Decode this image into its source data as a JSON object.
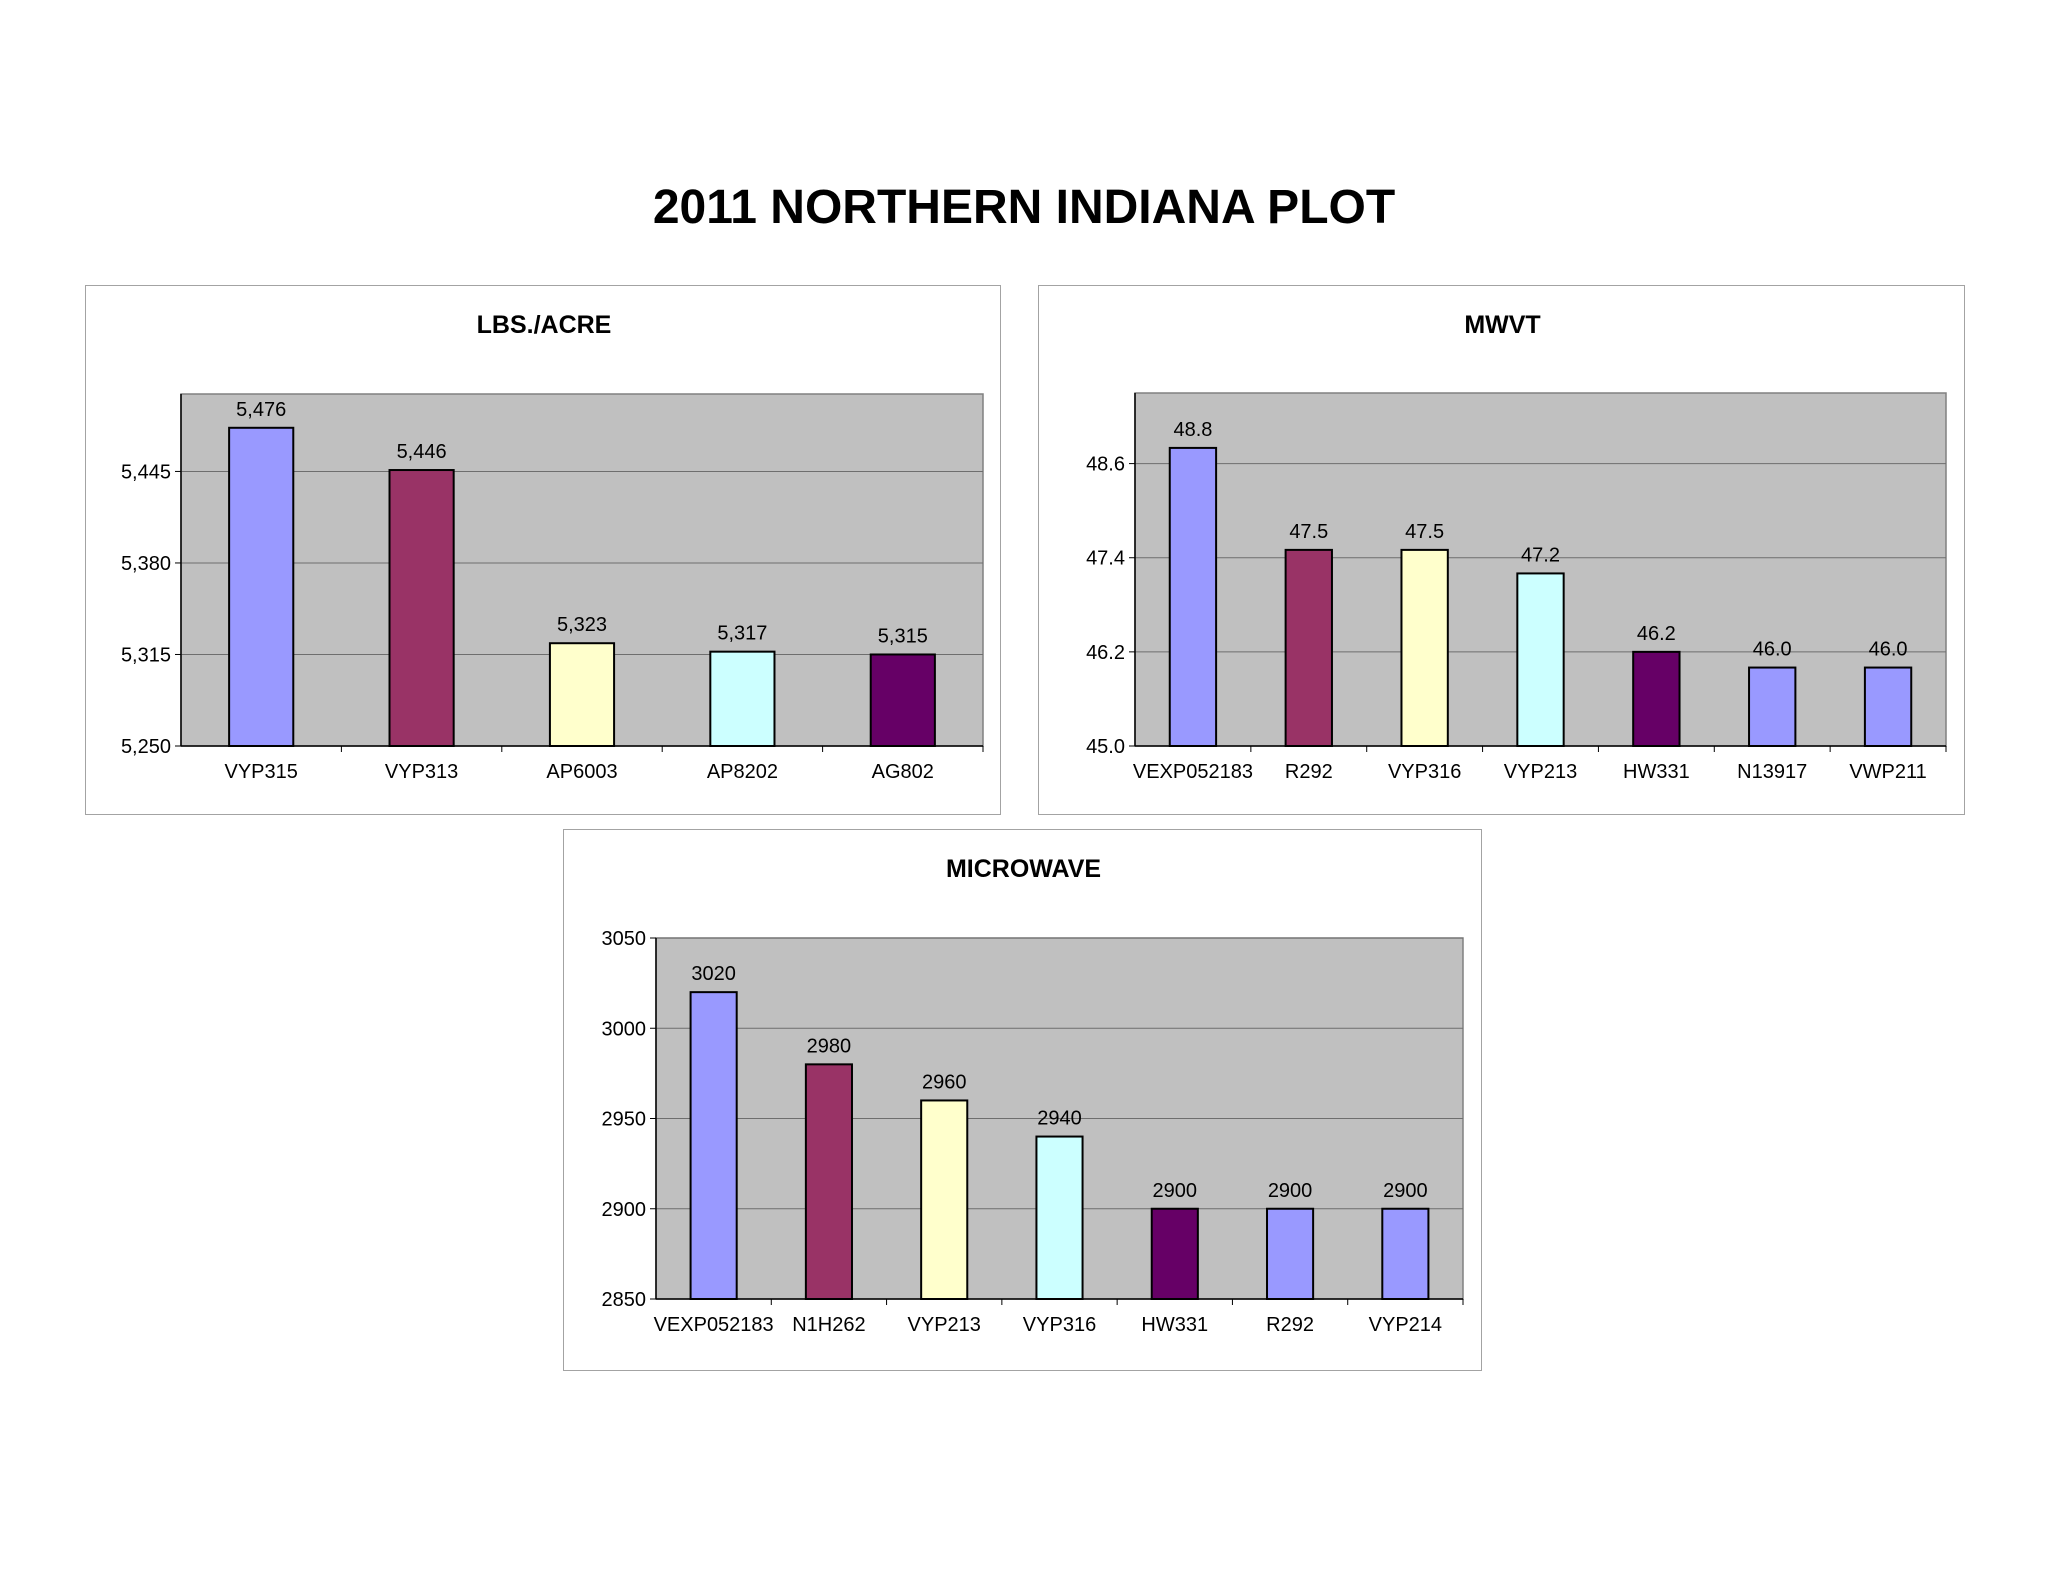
{
  "page": {
    "title": "2011 NORTHERN INDIANA PLOT"
  },
  "chart_data": [
    {
      "type": "bar",
      "title": "LBS./ACRE",
      "categories": [
        "VYP315",
        "VYP313",
        "AP6003",
        "AP8202",
        "AG802"
      ],
      "values": [
        5476,
        5446,
        5323,
        5317,
        5315
      ],
      "value_labels": [
        "5,476",
        "5,446",
        "5,323",
        "5,317",
        "5,315"
      ],
      "colors": [
        "#9999FF",
        "#993366",
        "#FFFFCC",
        "#CCFFFF",
        "#660066"
      ],
      "yticks": [
        5250,
        5315,
        5380,
        5445
      ],
      "ytick_labels": [
        "5,250",
        "5,315",
        "5,380",
        "5,445"
      ],
      "ylim": [
        5250,
        5500
      ],
      "grid": true,
      "legend": "none",
      "plot_bg": "#C0C0C0"
    },
    {
      "type": "bar",
      "title": "MWVT",
      "categories": [
        "VEXP052183",
        "R292",
        "VYP316",
        "VYP213",
        "HW331",
        "N13917",
        "VWP211"
      ],
      "values": [
        48.8,
        47.5,
        47.5,
        47.2,
        46.2,
        46.0,
        46.0
      ],
      "value_labels": [
        "48.8",
        "47.5",
        "47.5",
        "47.2",
        "46.2",
        "46.0",
        "46.0"
      ],
      "colors": [
        "#9999FF",
        "#993366",
        "#FFFFCC",
        "#CCFFFF",
        "#660066",
        "#9999FF",
        "#9999FF"
      ],
      "yticks": [
        45.0,
        46.2,
        47.4,
        48.6
      ],
      "ytick_labels": [
        "45.0",
        "46.2",
        "47.4",
        "48.6"
      ],
      "ylim": [
        45.0,
        49.5
      ],
      "grid": true,
      "legend": "none",
      "plot_bg": "#C0C0C0"
    },
    {
      "type": "bar",
      "title": "MICROWAVE",
      "categories": [
        "VEXP052183",
        "N1H262",
        "VYP213",
        "VYP316",
        "HW331",
        "R292",
        "VYP214"
      ],
      "values": [
        3020,
        2980,
        2960,
        2940,
        2900,
        2900,
        2900
      ],
      "value_labels": [
        "3020",
        "2980",
        "2960",
        "2940",
        "2900",
        "2900",
        "2900"
      ],
      "colors": [
        "#9999FF",
        "#993366",
        "#FFFFCC",
        "#CCFFFF",
        "#660066",
        "#9999FF",
        "#9999FF"
      ],
      "yticks": [
        2850,
        2900,
        2950,
        3000,
        3050
      ],
      "ytick_labels": [
        "2850",
        "2900",
        "2950",
        "3000",
        "3050"
      ],
      "ylim": [
        2850,
        3050
      ],
      "grid": true,
      "legend": "none",
      "plot_bg": "#C0C0C0"
    }
  ]
}
